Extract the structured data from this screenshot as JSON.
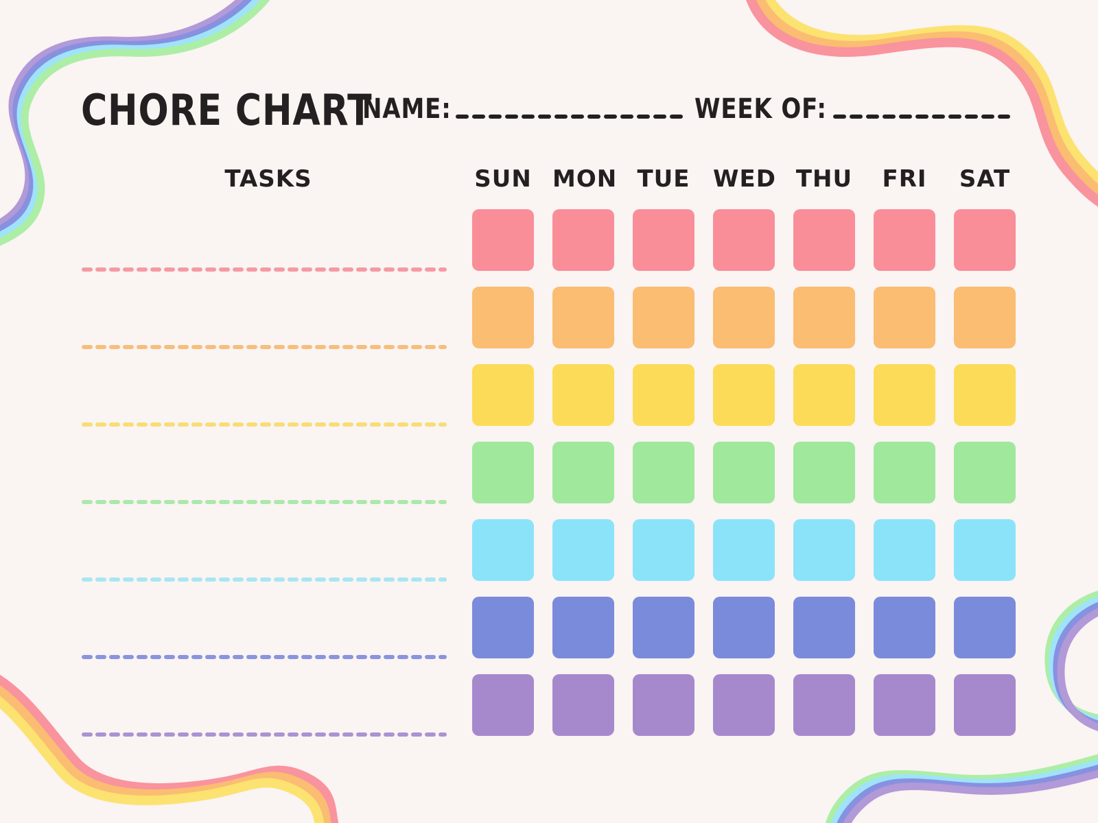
{
  "page": {
    "background_color": "#FAF4F2",
    "text_color": "#242021"
  },
  "header": {
    "title": "CHORE CHART",
    "name_label": "NAME:",
    "name_value": "",
    "week_of_label": "WEEK OF:",
    "week_of_value": ""
  },
  "table": {
    "tasks_label": "TASKS",
    "days": [
      "SUN",
      "MON",
      "TUE",
      "WED",
      "THU",
      "FRI",
      "SAT"
    ],
    "task_rows": [
      {
        "task": "",
        "line_color": "#F59AA3"
      },
      {
        "task": "",
        "line_color": "#F6BE7D"
      },
      {
        "task": "",
        "line_color": "#F8DD76"
      },
      {
        "task": "",
        "line_color": "#ABE8AB"
      },
      {
        "task": "",
        "line_color": "#A8E6F2"
      },
      {
        "task": "",
        "line_color": "#8A94DE"
      },
      {
        "task": "",
        "line_color": "#AB93D2"
      }
    ],
    "square_row_colors": [
      "#F98E99",
      "#FABD72",
      "#FCDB58",
      "#A0E89C",
      "#8BE3F9",
      "#7B8BDB",
      "#A689CD"
    ]
  },
  "decorations": {
    "underline_color": "#242021",
    "ribbon_top_left_colors": [
      "#B299D8",
      "#8791E0",
      "#9FE3FA",
      "#ACEEA6"
    ],
    "ribbon_top_right_colors": [
      "#FCE271",
      "#FABD72",
      "#F9939E"
    ],
    "ribbon_bottom_left_colors": [
      "#F9939E",
      "#FABD72",
      "#FCE271"
    ],
    "ribbon_bottom_right_colors": [
      "#ACEEA6",
      "#9FE3FA",
      "#8791E0",
      "#B299D8"
    ]
  }
}
